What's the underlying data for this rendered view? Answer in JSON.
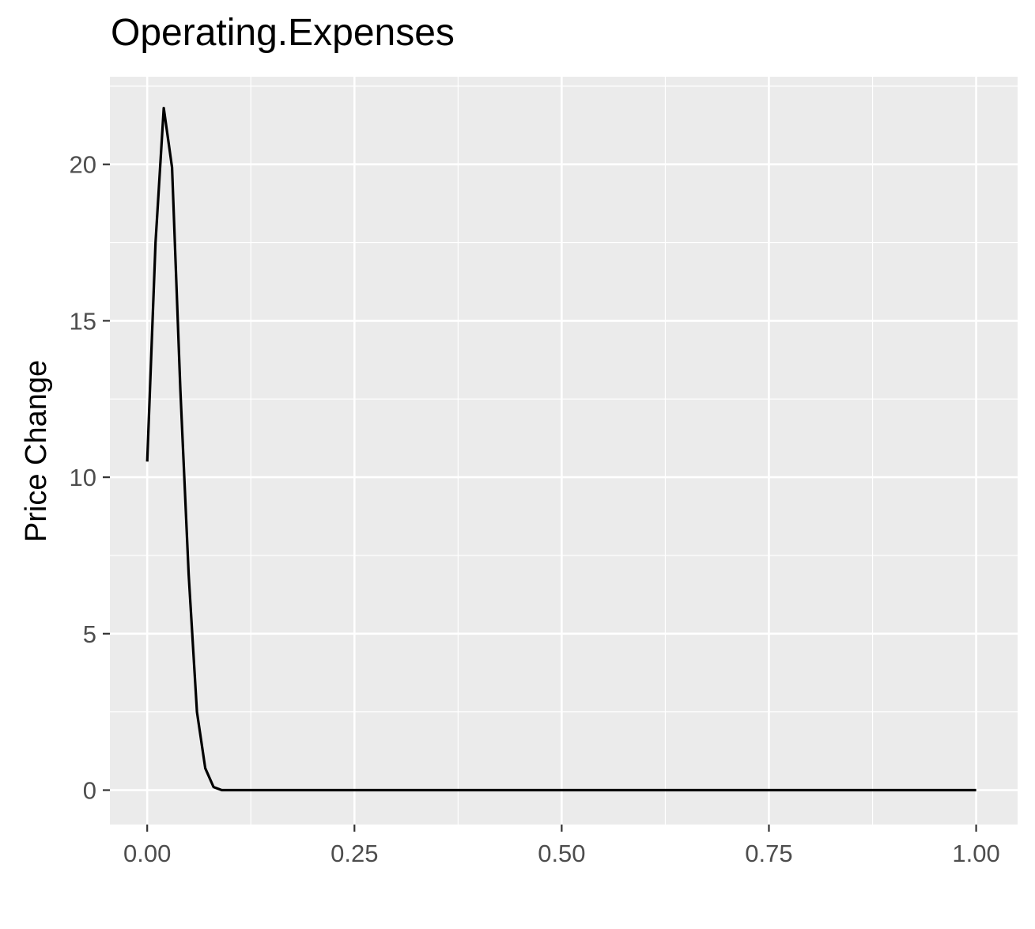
{
  "chart_data": {
    "type": "line",
    "title": "Operating.Expenses",
    "xlabel": "",
    "ylabel": "Price Change",
    "xlim": [
      -0.045,
      1.05
    ],
    "ylim": [
      -1.1,
      22.8
    ],
    "x_ticks": [
      0.0,
      0.25,
      0.5,
      0.75,
      1.0
    ],
    "x_tick_labels": [
      "0.00",
      "0.25",
      "0.50",
      "0.75",
      "1.00"
    ],
    "y_ticks": [
      0,
      5,
      10,
      15,
      20
    ],
    "y_tick_labels": [
      "0",
      "5",
      "10",
      "15",
      "20"
    ],
    "grid": true,
    "panel_background": "#ebebeb",
    "grid_color": "#ffffff",
    "line_color": "#000000",
    "series": [
      {
        "x": [
          0.0,
          0.01,
          0.02,
          0.03,
          0.04,
          0.05,
          0.06,
          0.07,
          0.08,
          0.09,
          0.1,
          0.2,
          0.3,
          0.4,
          0.5,
          0.6,
          0.7,
          0.8,
          0.9,
          1.0
        ],
        "values": [
          10.5,
          17.5,
          21.8,
          19.9,
          12.8,
          6.9,
          2.5,
          0.7,
          0.1,
          0.0,
          0.0,
          0.0,
          0.0,
          0.0,
          0.0,
          0.0,
          0.0,
          0.0,
          0.0,
          0.0
        ]
      }
    ]
  }
}
